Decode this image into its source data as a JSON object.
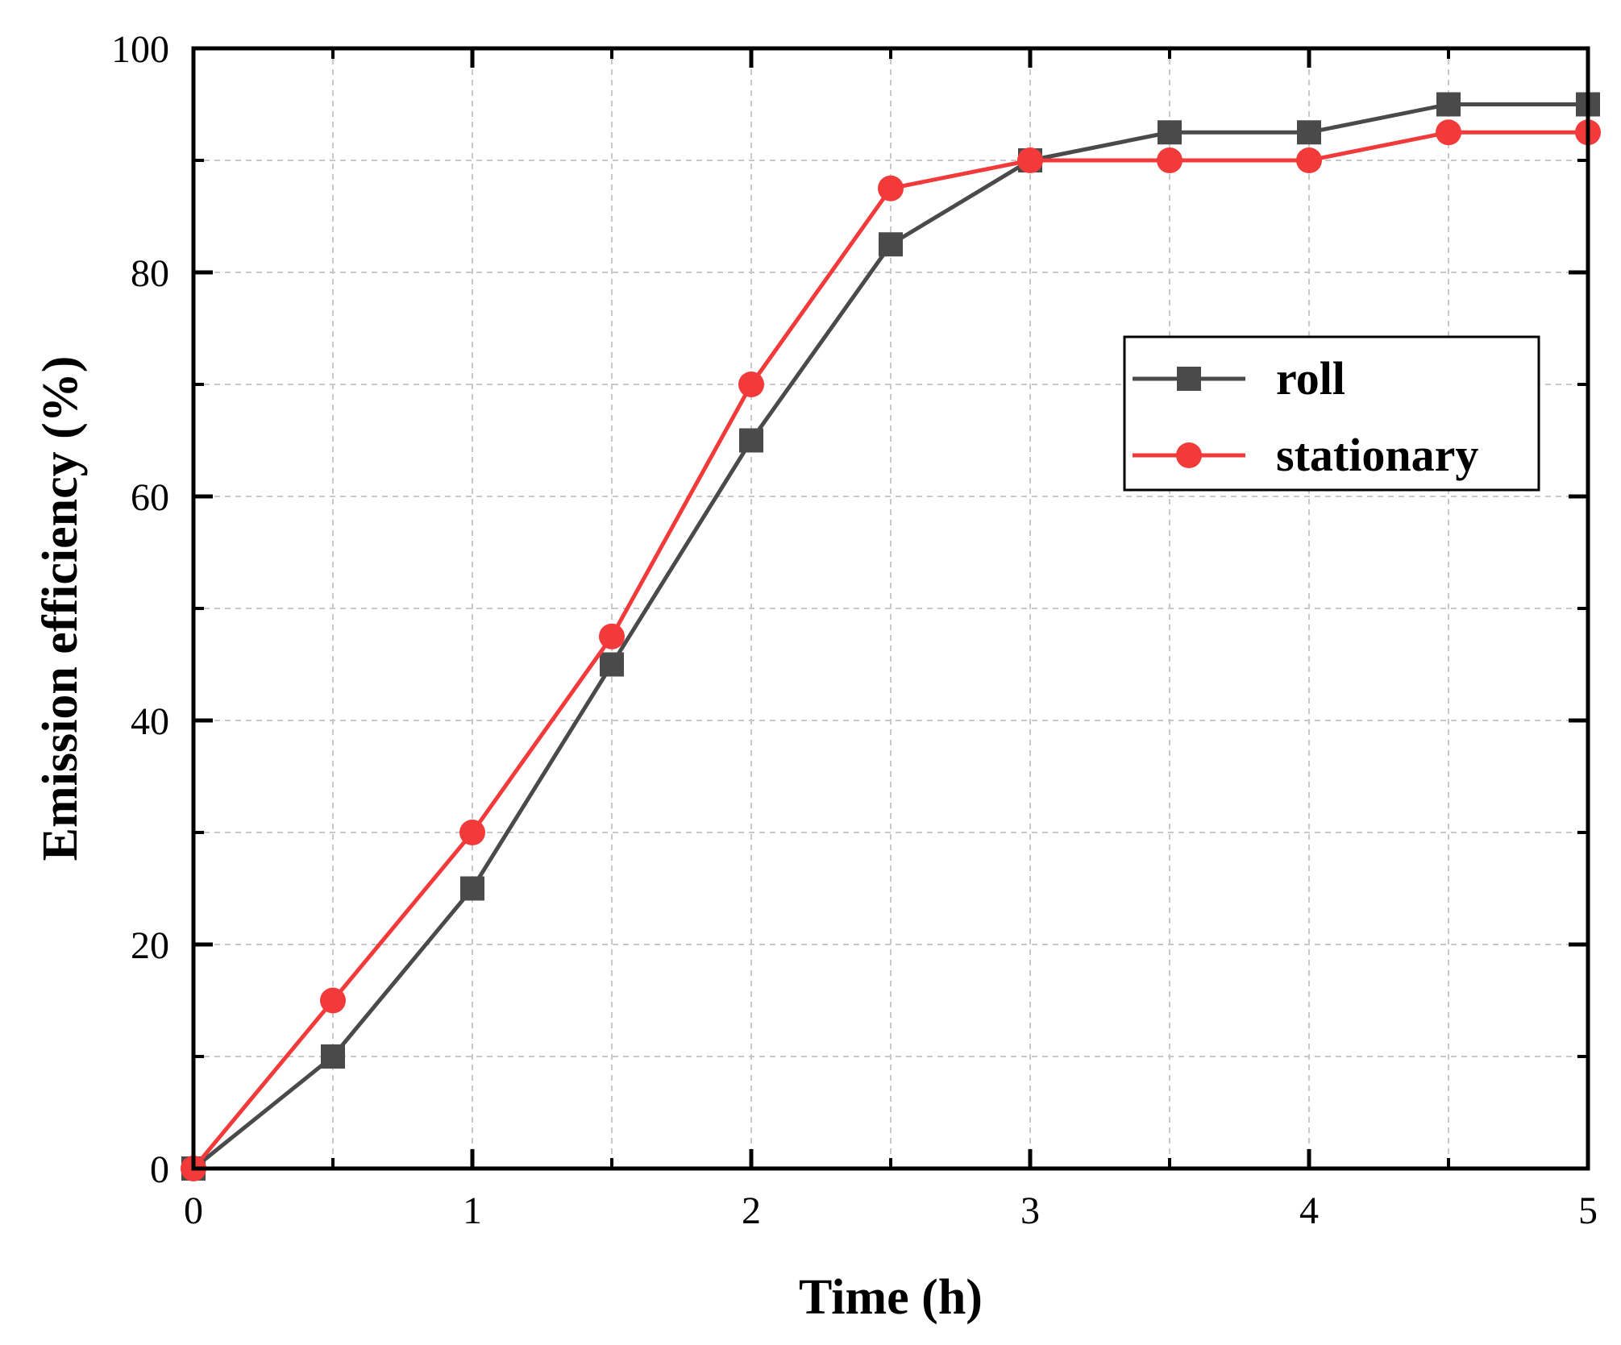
{
  "chart_data": {
    "type": "line",
    "title": "",
    "xlabel": "Time (h)",
    "ylabel": "Emission efficiency (%)",
    "xlim": [
      0,
      5
    ],
    "ylim": [
      0,
      100
    ],
    "xticks": [
      0,
      1,
      2,
      3,
      4,
      5
    ],
    "yticks": [
      0,
      20,
      40,
      60,
      80,
      100
    ],
    "xminor": [
      0.5,
      1.5,
      2.5,
      3.5,
      4.5
    ],
    "yminor": [
      10,
      30,
      50,
      70,
      90
    ],
    "grid": true,
    "legend_position": "right-upper",
    "x": [
      0,
      0.5,
      1,
      1.5,
      2,
      2.5,
      3,
      3.5,
      4,
      4.5,
      5
    ],
    "series": [
      {
        "name": "roll",
        "color": "#4a4a4a",
        "marker": "square",
        "values": [
          0,
          10,
          25,
          45,
          65,
          82.5,
          90,
          92.5,
          92.5,
          95,
          95
        ]
      },
      {
        "name": "stationary",
        "color": "#f23a3a",
        "marker": "circle",
        "values": [
          0,
          15,
          30,
          47.5,
          70,
          87.5,
          90,
          90,
          90,
          92.5,
          92.5
        ]
      }
    ]
  }
}
